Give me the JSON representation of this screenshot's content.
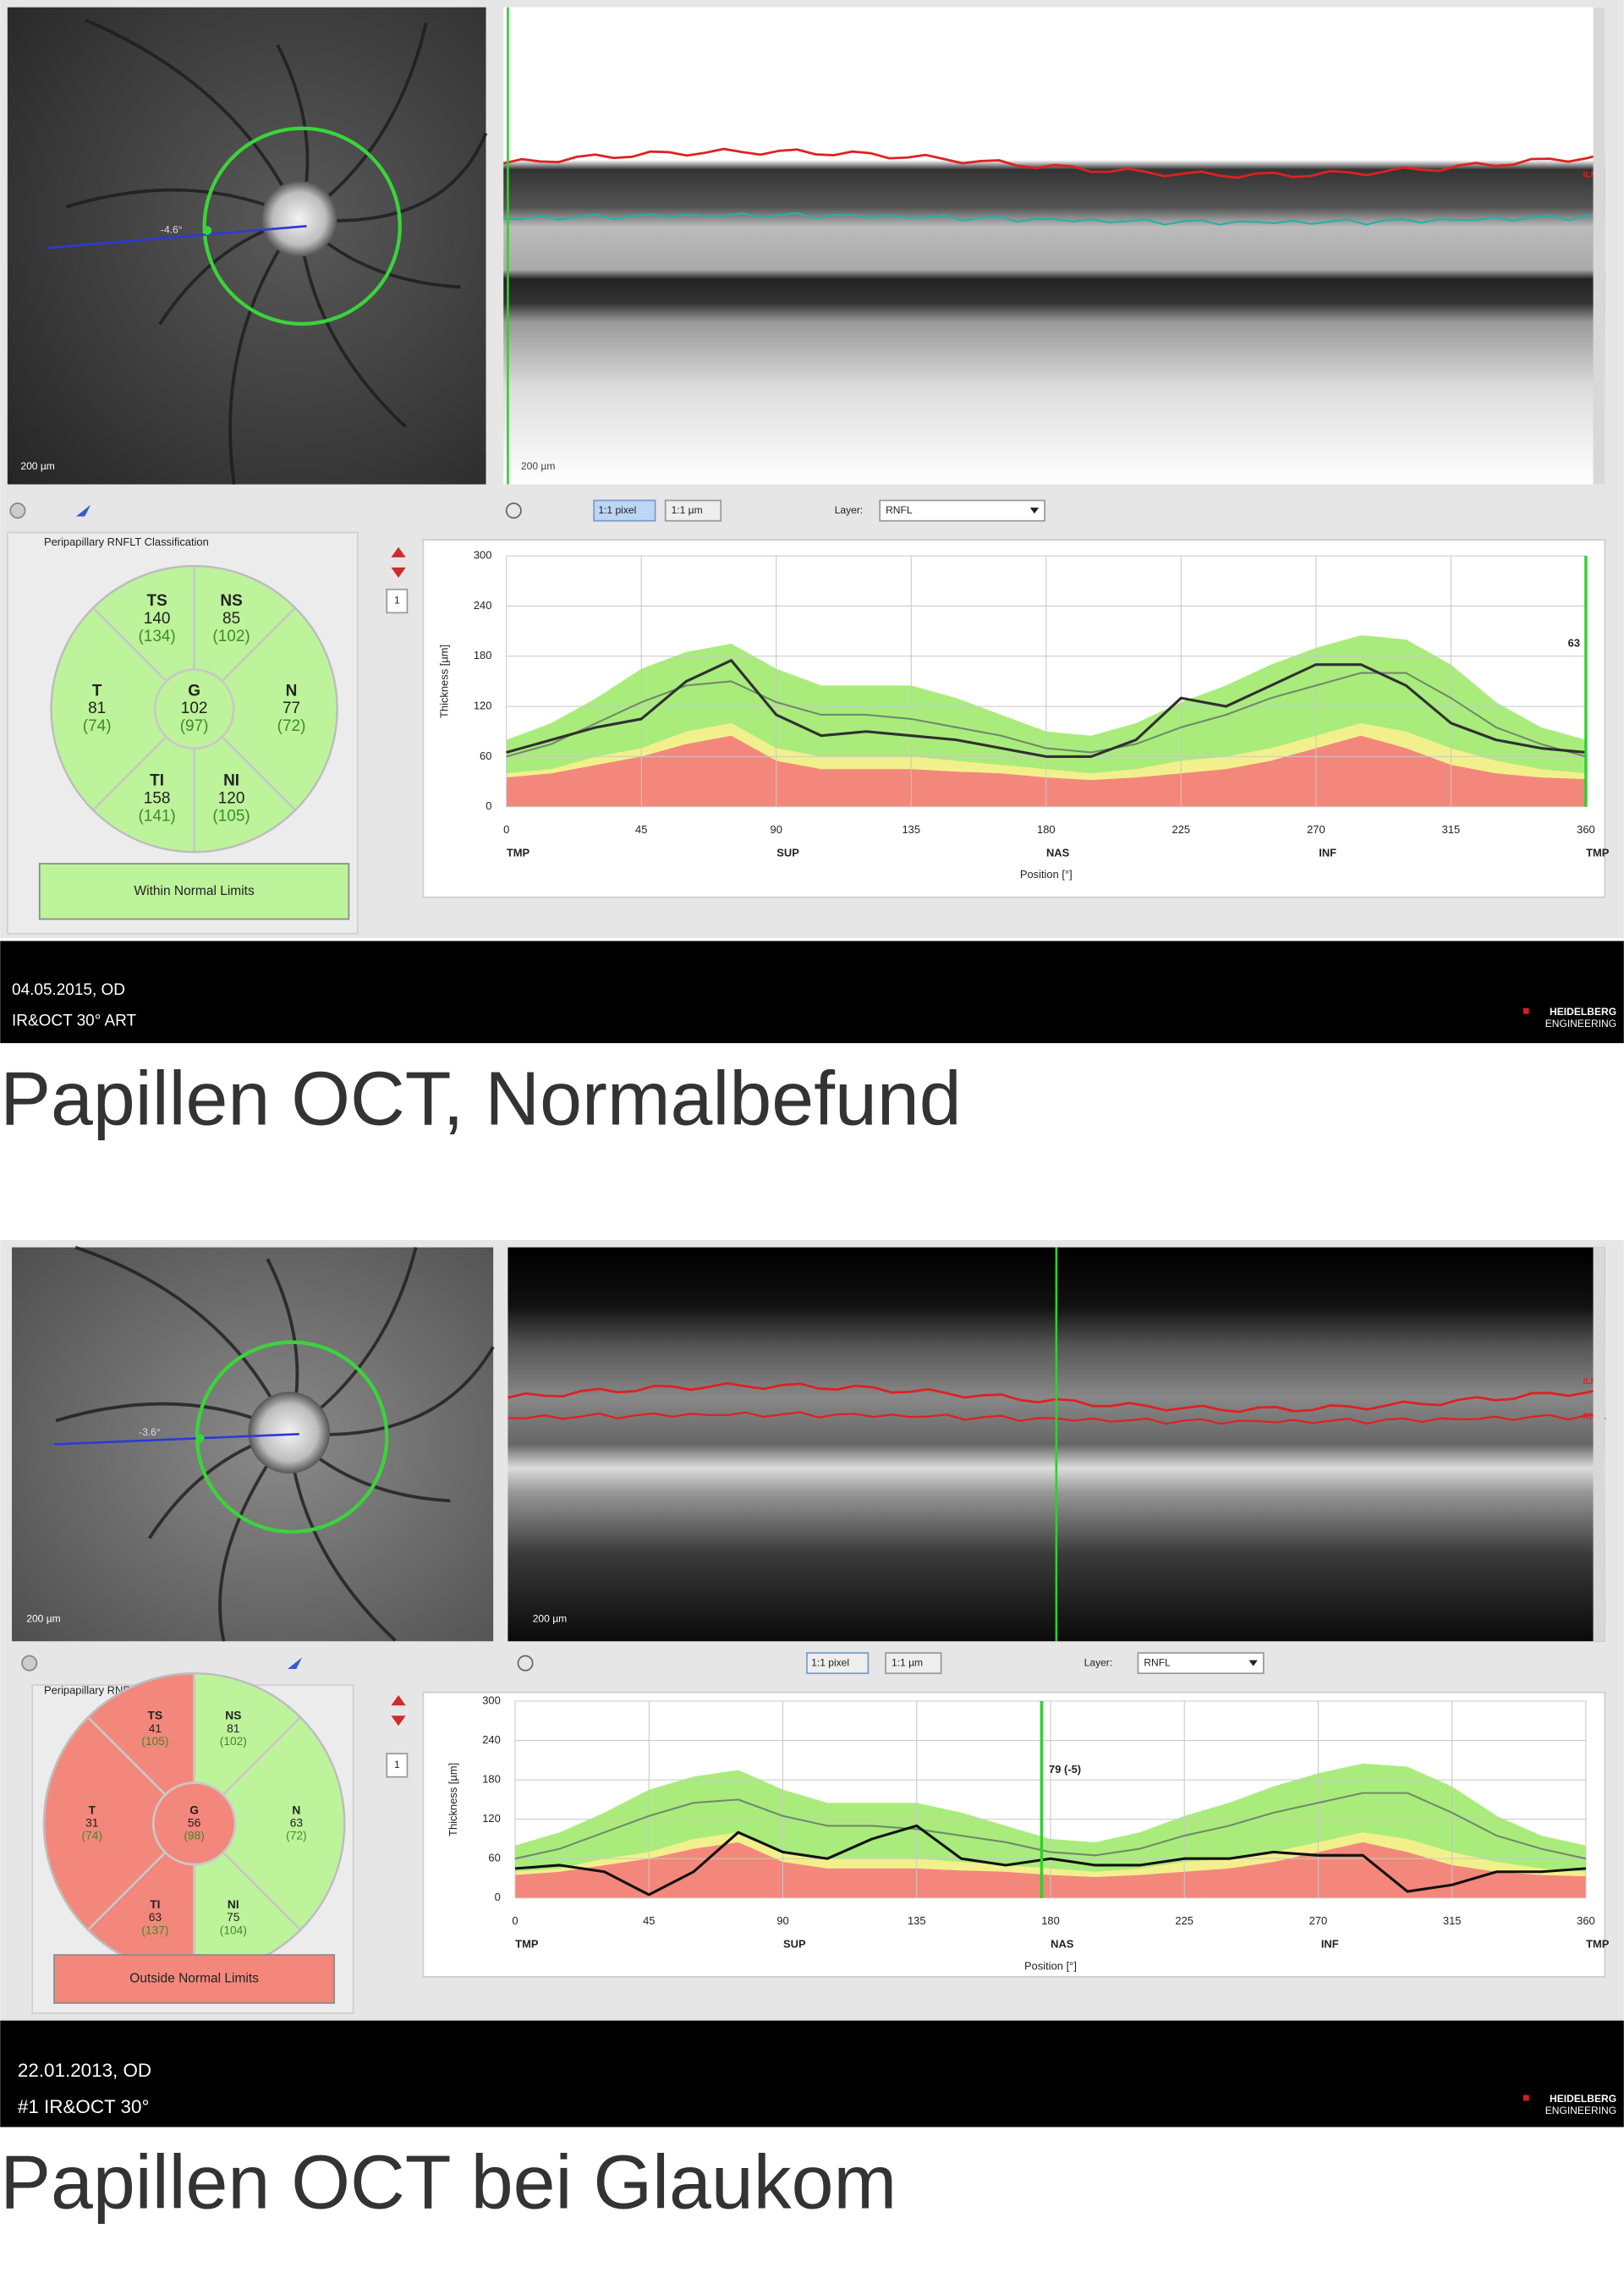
{
  "panels": [
    {
      "fundus": {
        "scale": "200 µm",
        "angle": "-4.6°"
      },
      "oct": {
        "scale": "200 µm",
        "layers": [
          "ILM"
        ]
      },
      "toolbar": {
        "zoom_pixel": "1:1 pixel",
        "zoom_um": "1:1 µm",
        "layer_label": "Layer:",
        "layer": "RNFL"
      },
      "classification": {
        "title": "Peripapillary RNFLT Classification",
        "page": 1,
        "sectors": [
          {
            "label": "TS",
            "value": 140,
            "normal": {
              "value": 134,
              "label": "(134)"
            },
            "color": "#bdf39a"
          },
          {
            "label": "NS",
            "value": 85,
            "normal": {
              "value": 102,
              "label": "(102)"
            },
            "color": "#bdf39a"
          },
          {
            "label": "T",
            "value": 81,
            "normal": {
              "value": 74,
              "label": "(74)"
            },
            "color": "#bdf39a"
          },
          {
            "label": "N",
            "value": 77,
            "normal": {
              "value": 72,
              "label": "(72)"
            },
            "color": "#bdf39a"
          },
          {
            "label": "TI",
            "value": 158,
            "normal": {
              "value": 141,
              "label": "(141)"
            },
            "color": "#bdf39a"
          },
          {
            "label": "NI",
            "value": 120,
            "normal": {
              "value": 105,
              "label": "(105)"
            },
            "color": "#bdf39a"
          },
          {
            "label": "G",
            "value": 102,
            "normal": {
              "value": 97,
              "label": "(97)"
            },
            "color": "#bdf39a"
          }
        ],
        "result": "Within Normal Limits",
        "result_color": "#bdf39a"
      },
      "chart": {
        "type": "line",
        "ylabel": "Thickness [µm]",
        "xlabel": "Position [°]",
        "ylim": [
          0,
          300
        ],
        "yticks": [
          0,
          60,
          120,
          180,
          240,
          300
        ],
        "xlim": [
          0,
          360
        ],
        "xticks": [
          0,
          45,
          90,
          135,
          180,
          225,
          270,
          315,
          360
        ],
        "xtick_names": [
          "TMP",
          null,
          "SUP",
          null,
          "NAS",
          null,
          "INF",
          null,
          "TMP"
        ],
        "x": [
          0,
          15,
          30,
          45,
          60,
          75,
          90,
          105,
          120,
          135,
          150,
          165,
          180,
          195,
          210,
          225,
          240,
          255,
          270,
          285,
          300,
          315,
          330,
          345,
          360
        ],
        "bands": [
          {
            "color": "#a9ec7c",
            "values": [
              80,
              100,
              130,
              165,
              185,
              195,
              165,
              145,
              145,
              145,
              130,
              110,
              90,
              85,
              100,
              125,
              145,
              170,
              190,
              205,
              200,
              170,
              125,
              95,
              80
            ]
          },
          {
            "color": "#f2f08c",
            "values": [
              40,
              45,
              60,
              70,
              90,
              100,
              70,
              60,
              60,
              60,
              55,
              50,
              45,
              40,
              45,
              55,
              60,
              70,
              85,
              100,
              90,
              70,
              55,
              45,
              40
            ]
          },
          {
            "color": "#f4877b",
            "values": [
              35,
              40,
              50,
              60,
              75,
              85,
              55,
              45,
              45,
              45,
              42,
              40,
              35,
              32,
              35,
              40,
              45,
              55,
              70,
              85,
              70,
              50,
              40,
              35,
              33
            ]
          }
        ],
        "lines": [
          {
            "color": "#6f8a6a",
            "values": [
              60,
              75,
              100,
              125,
              145,
              150,
              125,
              110,
              110,
              105,
              95,
              85,
              70,
              65,
              75,
              95,
              110,
              130,
              145,
              160,
              160,
              130,
              95,
              75,
              60
            ]
          },
          {
            "color": "#303030",
            "values": [
              65,
              80,
              95,
              105,
              150,
              175,
              110,
              85,
              90,
              85,
              80,
              70,
              60,
              60,
              80,
              130,
              120,
              145,
              170,
              170,
              145,
              100,
              80,
              70,
              65
            ]
          }
        ],
        "marker": {
          "x": 360,
          "label": "63",
          "color": "#2fd02f"
        }
      },
      "footer": {
        "date": "04.05.2015, OD",
        "device": "IR&OCT 30° ART",
        "logo": [
          "HEIDELBERG",
          "ENGINEERING"
        ]
      },
      "caption": "Papillen OCT, Normalbefund"
    },
    {
      "fundus": {
        "scale": "200 µm",
        "angle": "-3.6°"
      },
      "oct": {
        "scale": "200 µm",
        "layers": [
          "ILM",
          "RNFL"
        ]
      },
      "toolbar": {
        "zoom_pixel": "1:1 pixel",
        "zoom_um": "1:1 µm",
        "layer_label": "Layer:",
        "layer": "RNFL"
      },
      "classification": {
        "title": "Peripapillary RNFLT Classification",
        "page": 1,
        "sectors": [
          {
            "label": "TS",
            "value": 41,
            "normal": {
              "value": 105,
              "label": "(105)"
            },
            "color": "#f4877b"
          },
          {
            "label": "NS",
            "value": 81,
            "normal": {
              "value": 102,
              "label": "(102)"
            },
            "color": "#bdf39a"
          },
          {
            "label": "T",
            "value": 31,
            "normal": {
              "value": 74,
              "label": "(74)"
            },
            "color": "#f4877b"
          },
          {
            "label": "N",
            "value": 63,
            "normal": {
              "value": 72,
              "label": "(72)"
            },
            "color": "#bdf39a"
          },
          {
            "label": "TI",
            "value": 63,
            "normal": {
              "value": 137,
              "label": "(137)"
            },
            "color": "#f4877b"
          },
          {
            "label": "NI",
            "value": 75,
            "normal": {
              "value": 104,
              "label": "(104)"
            },
            "color": "#bdf39a"
          },
          {
            "label": "G",
            "value": 56,
            "normal": {
              "value": 98,
              "label": "(98)"
            },
            "color": "#f4877b"
          }
        ],
        "result": "Outside Normal Limits",
        "result_color": "#f4877b"
      },
      "chart": {
        "type": "line",
        "ylabel": "Thickness [µm]",
        "xlabel": "Position [°]",
        "ylim": [
          0,
          300
        ],
        "yticks": [
          0,
          60,
          120,
          180,
          240,
          300
        ],
        "xlim": [
          0,
          360
        ],
        "xticks": [
          0,
          45,
          90,
          135,
          180,
          225,
          270,
          315,
          360
        ],
        "xtick_names": [
          "TMP",
          null,
          "SUP",
          null,
          "NAS",
          null,
          "INF",
          null,
          "TMP"
        ],
        "x": [
          0,
          15,
          30,
          45,
          60,
          75,
          90,
          105,
          120,
          135,
          150,
          165,
          180,
          195,
          210,
          225,
          240,
          255,
          270,
          285,
          300,
          315,
          330,
          345,
          360
        ],
        "bands": [
          {
            "color": "#a9ec7c",
            "values": [
              80,
              100,
              130,
              165,
              185,
              195,
              165,
              145,
              145,
              145,
              130,
              110,
              90,
              85,
              100,
              125,
              145,
              170,
              190,
              205,
              200,
              170,
              125,
              95,
              80
            ]
          },
          {
            "color": "#f2f08c",
            "values": [
              40,
              45,
              60,
              70,
              90,
              100,
              70,
              60,
              60,
              60,
              55,
              50,
              45,
              40,
              45,
              55,
              60,
              70,
              85,
              100,
              90,
              70,
              55,
              45,
              40
            ]
          },
          {
            "color": "#f4877b",
            "values": [
              35,
              40,
              50,
              60,
              75,
              85,
              55,
              45,
              45,
              45,
              42,
              40,
              35,
              32,
              35,
              40,
              45,
              55,
              70,
              85,
              70,
              50,
              40,
              35,
              33
            ]
          }
        ],
        "lines": [
          {
            "color": "#6f8a6a",
            "values": [
              60,
              75,
              100,
              125,
              145,
              150,
              125,
              110,
              110,
              105,
              95,
              85,
              70,
              65,
              75,
              95,
              110,
              130,
              145,
              160,
              160,
              130,
              95,
              75,
              60
            ]
          },
          {
            "color": "#111111",
            "values": [
              45,
              50,
              40,
              5,
              40,
              100,
              70,
              60,
              90,
              110,
              60,
              50,
              60,
              50,
              50,
              60,
              60,
              70,
              65,
              65,
              10,
              20,
              40,
              40,
              45
            ]
          }
        ],
        "marker": {
          "x": 177,
          "label": "79 (-5)",
          "color": "#2fd02f"
        }
      },
      "footer": {
        "date": "22.01.2013, OD",
        "device": "#1 IR&OCT 30°",
        "logo": [
          "HEIDELBERG",
          "ENGINEERING"
        ]
      },
      "caption": "Papillen OCT bei Glaukom"
    }
  ]
}
